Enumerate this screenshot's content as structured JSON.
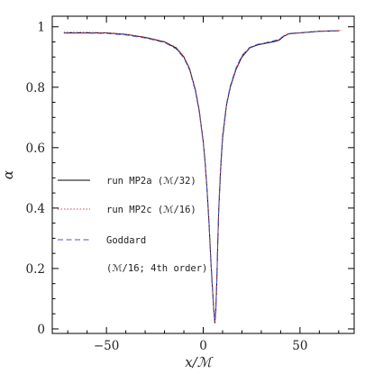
{
  "chart_data": {
    "type": "line",
    "xlabel": "x/ℳ",
    "ylabel": "α",
    "xlim": [
      -78,
      78
    ],
    "ylim": [
      -0.015,
      1.035
    ],
    "xticks": [
      -50,
      0,
      50
    ],
    "yticks": [
      0,
      0.2,
      0.4,
      0.6,
      0.8,
      1
    ],
    "ytick_labels": [
      "0",
      "0.2",
      "0.4",
      "0.6",
      "0.8",
      "1"
    ],
    "grid": false,
    "legend_position": "center-left",
    "legend_note": "(ℳ/16; 4th order)",
    "series": [
      {
        "name": "run MP2a (ℳ/32)",
        "color": "#000000",
        "dash": "solid",
        "x": [
          -72,
          -60,
          -50,
          -40,
          -30,
          -20,
          -14,
          -10,
          -7,
          -4,
          -2,
          0,
          1,
          2,
          3,
          4,
          5,
          5.5,
          6,
          6.5,
          7,
          7.5,
          8,
          9,
          10,
          12,
          14,
          17,
          20,
          24,
          28,
          32,
          36,
          39,
          42,
          44,
          46,
          50,
          60,
          70
        ],
        "y": [
          0.98,
          0.98,
          0.98,
          0.975,
          0.965,
          0.95,
          0.93,
          0.9,
          0.86,
          0.79,
          0.72,
          0.62,
          0.55,
          0.46,
          0.35,
          0.22,
          0.11,
          0.06,
          0.02,
          0.06,
          0.15,
          0.28,
          0.39,
          0.53,
          0.63,
          0.74,
          0.8,
          0.86,
          0.9,
          0.93,
          0.94,
          0.945,
          0.95,
          0.955,
          0.97,
          0.976,
          0.978,
          0.98,
          0.985,
          0.987
        ]
      },
      {
        "name": "run MP2c (ℳ/16)",
        "color": "#e8383d",
        "dash": "dotted",
        "x": [
          -72,
          -60,
          -50,
          -40,
          -30,
          -20,
          -14,
          -10,
          -7,
          -4,
          -2,
          0,
          1,
          2,
          3,
          4,
          5,
          5.5,
          6,
          6.5,
          7,
          7.5,
          8,
          9,
          10,
          12,
          14,
          17,
          20,
          24,
          28,
          32,
          36,
          39,
          42,
          44,
          46,
          50,
          60,
          72
        ],
        "y": [
          0.982,
          0.982,
          0.98,
          0.975,
          0.966,
          0.951,
          0.932,
          0.902,
          0.862,
          0.792,
          0.722,
          0.622,
          0.552,
          0.462,
          0.352,
          0.222,
          0.112,
          0.062,
          0.025,
          0.065,
          0.155,
          0.285,
          0.395,
          0.535,
          0.635,
          0.742,
          0.802,
          0.862,
          0.902,
          0.931,
          0.941,
          0.946,
          0.952,
          0.957,
          0.971,
          0.977,
          0.979,
          0.981,
          0.986,
          0.988
        ]
      },
      {
        "name": "Goddard",
        "color": "#4a55c8",
        "dash": "dashed",
        "x": [
          -72,
          -60,
          -50,
          -40,
          -30,
          -20,
          -14,
          -10,
          -7,
          -4,
          -2,
          0,
          1,
          2,
          3,
          4,
          5,
          5.5,
          6,
          6.5,
          7,
          7.5,
          8,
          9,
          10,
          12,
          14,
          17,
          20,
          24,
          28,
          32,
          36,
          39,
          42,
          44,
          46,
          50,
          60,
          70
        ],
        "y": [
          0.979,
          0.979,
          0.978,
          0.973,
          0.963,
          0.948,
          0.927,
          0.897,
          0.856,
          0.785,
          0.715,
          0.615,
          0.545,
          0.455,
          0.345,
          0.215,
          0.105,
          0.055,
          0.03,
          0.07,
          0.16,
          0.29,
          0.4,
          0.54,
          0.64,
          0.745,
          0.805,
          0.865,
          0.905,
          0.932,
          0.942,
          0.947,
          0.953,
          0.958,
          0.972,
          0.977,
          0.979,
          0.98,
          0.985,
          0.987
        ]
      }
    ]
  }
}
